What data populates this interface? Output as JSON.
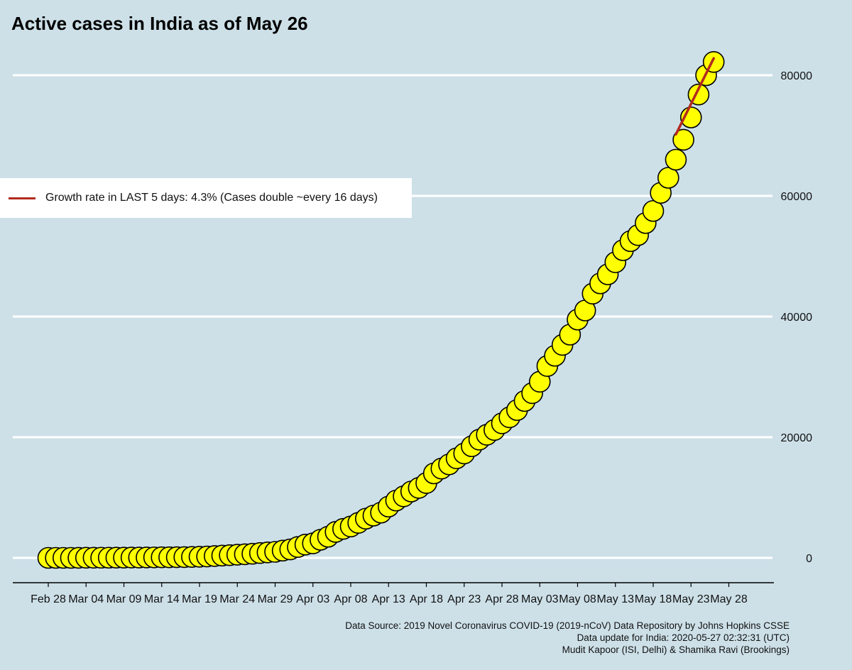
{
  "title": "Active cases in India as of May 26",
  "legend": {
    "label": "Growth rate in LAST 5 days: 4.3% (Cases double ~every 16 days)",
    "color": "#b22a1e"
  },
  "source_lines": [
    "Data Source: 2019 Novel Coronavirus COVID-19 (2019-nCoV) Data Repository by Johns Hopkins CSSE",
    "Data update for India: 2020-05-27 02:32:31 (UTC)",
    "Mudit Kapoor (ISI, Delhi) & Shamika Ravi (Brookings)"
  ],
  "colors": {
    "background": "#cde0e8",
    "marker_fill": "#ffff00",
    "marker_stroke": "#000000",
    "gridline": "#ffffff",
    "trend": "#b22a1e"
  },
  "chart_data": {
    "type": "scatter",
    "title": "Active cases in India as of May 26",
    "xlabel": "",
    "ylabel": "",
    "x_start": "2020-02-28",
    "x_tick_labels": [
      "Feb 28",
      "Mar 04",
      "Mar 09",
      "Mar 14",
      "Mar 19",
      "Mar 24",
      "Mar 29",
      "Apr 03",
      "Apr 08",
      "Apr 13",
      "Apr 18",
      "Apr 23",
      "Apr 28",
      "May 03",
      "May 08",
      "May 13",
      "May 18",
      "May 23",
      "May 28"
    ],
    "y_ticks": [
      0,
      20000,
      40000,
      60000,
      80000
    ],
    "ylim": [
      -3800,
      85000
    ],
    "xlim": [
      "2020-02-27",
      "2020-05-30"
    ],
    "y_axis_position": "right",
    "grid": true,
    "legend_position": "middle-left",
    "series": [
      {
        "name": "Active cases",
        "x": [
          "2020-02-28",
          "2020-02-29",
          "2020-03-01",
          "2020-03-02",
          "2020-03-03",
          "2020-03-04",
          "2020-03-05",
          "2020-03-06",
          "2020-03-07",
          "2020-03-08",
          "2020-03-09",
          "2020-03-10",
          "2020-03-11",
          "2020-03-12",
          "2020-03-13",
          "2020-03-14",
          "2020-03-15",
          "2020-03-16",
          "2020-03-17",
          "2020-03-18",
          "2020-03-19",
          "2020-03-20",
          "2020-03-21",
          "2020-03-22",
          "2020-03-23",
          "2020-03-24",
          "2020-03-25",
          "2020-03-26",
          "2020-03-27",
          "2020-03-28",
          "2020-03-29",
          "2020-03-30",
          "2020-03-31",
          "2020-04-01",
          "2020-04-02",
          "2020-04-03",
          "2020-04-04",
          "2020-04-05",
          "2020-04-06",
          "2020-04-07",
          "2020-04-08",
          "2020-04-09",
          "2020-04-10",
          "2020-04-11",
          "2020-04-12",
          "2020-04-13",
          "2020-04-14",
          "2020-04-15",
          "2020-04-16",
          "2020-04-17",
          "2020-04-18",
          "2020-04-19",
          "2020-04-20",
          "2020-04-21",
          "2020-04-22",
          "2020-04-23",
          "2020-04-24",
          "2020-04-25",
          "2020-04-26",
          "2020-04-27",
          "2020-04-28",
          "2020-04-29",
          "2020-04-30",
          "2020-05-01",
          "2020-05-02",
          "2020-05-03",
          "2020-05-04",
          "2020-05-05",
          "2020-05-06",
          "2020-05-07",
          "2020-05-08",
          "2020-05-09",
          "2020-05-10",
          "2020-05-11",
          "2020-05-12",
          "2020-05-13",
          "2020-05-14",
          "2020-05-15",
          "2020-05-16",
          "2020-05-17",
          "2020-05-18",
          "2020-05-19",
          "2020-05-20",
          "2020-05-21",
          "2020-05-22",
          "2020-05-23",
          "2020-05-24",
          "2020-05-25",
          "2020-05-26"
        ],
        "y": [
          0,
          0,
          0,
          0,
          2,
          25,
          27,
          28,
          30,
          36,
          40,
          50,
          56,
          65,
          75,
          90,
          100,
          115,
          125,
          150,
          180,
          230,
          300,
          380,
          450,
          520,
          600,
          680,
          800,
          900,
          1000,
          1200,
          1400,
          1800,
          2200,
          2400,
          3000,
          3500,
          4300,
          4800,
          5200,
          5800,
          6500,
          7000,
          7500,
          8500,
          9500,
          10200,
          11000,
          11600,
          12400,
          14000,
          14800,
          15500,
          16500,
          17300,
          18500,
          19600,
          20400,
          21200,
          22300,
          23300,
          24500,
          26000,
          27300,
          29200,
          31800,
          33500,
          35300,
          37000,
          39500,
          41000,
          43800,
          45500,
          47000,
          49000,
          51000,
          52500,
          53500,
          55500,
          57500,
          60500,
          63000,
          66000,
          69300,
          73000,
          76800,
          80000,
          82200
        ]
      }
    ],
    "trend": {
      "label": "Growth rate in LAST 5 days: 4.3% (Cases double ~every 16 days)",
      "x": [
        "2020-05-21",
        "2020-05-26"
      ],
      "y": [
        70200,
        82800
      ]
    }
  }
}
